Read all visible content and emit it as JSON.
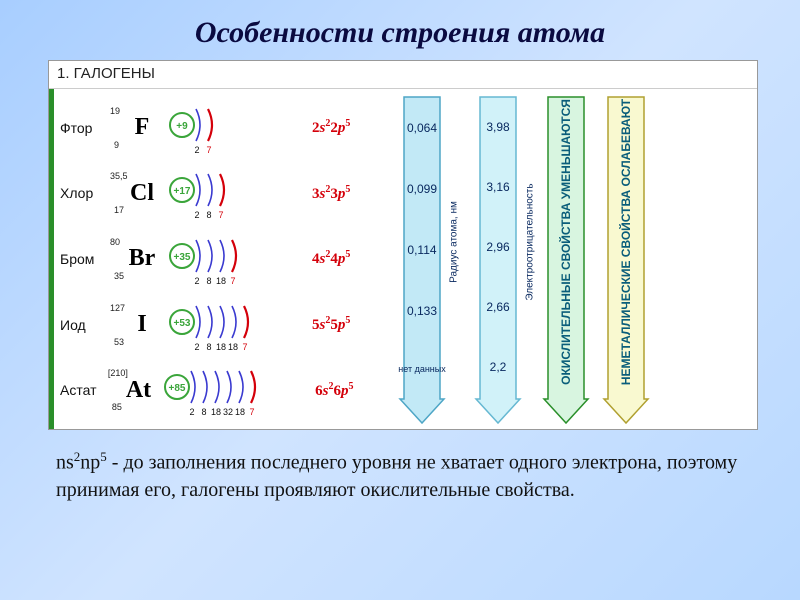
{
  "title": "Особенности строения атома",
  "section_header": "1. ГАЛОГЕНЫ",
  "colors": {
    "circle": "#3aa53a",
    "arc_outer": "#3a3ad0",
    "arc_last": "#d4000a",
    "symbol": "#111111",
    "shell_num": "#111111",
    "shell_num_last": "#d4000a",
    "config": "#d4000a",
    "green_bar": "#2a8f2a",
    "arrow1_fill": "#c2e9f6",
    "arrow1_stroke": "#4ea6c6",
    "arrow2_fill": "#d1f2f9",
    "arrow2_stroke": "#66b8d2",
    "arrow3_fill": "#d8f5e0",
    "arrow3_stroke": "#2a8f2a",
    "arrow4_fill": "#f9f9d0",
    "arrow4_stroke": "#b0a030"
  },
  "footnote_prefix": "ns",
  "footnote_mid": "np",
  "footnote_rest": "  - до заполнения последнего уровня не хватает одного электрона, поэтому принимая его, галогены проявляют окислительные свойства.",
  "elements": [
    {
      "name": "Фтор",
      "symbol": "F",
      "mass": "19",
      "z": "9",
      "charge": "+9",
      "shells": [
        2,
        7
      ],
      "config_n": "2"
    },
    {
      "name": "Хлор",
      "symbol": "Cl",
      "mass": "35,5",
      "z": "17",
      "charge": "+17",
      "shells": [
        2,
        8,
        7
      ],
      "config_n": "3"
    },
    {
      "name": "Бром",
      "symbol": "Br",
      "mass": "80",
      "z": "35",
      "charge": "+35",
      "shells": [
        2,
        8,
        18,
        7
      ],
      "config_n": "4"
    },
    {
      "name": "Иод",
      "symbol": "I",
      "mass": "127",
      "z": "53",
      "charge": "+53",
      "shells": [
        2,
        8,
        18,
        18,
        7
      ],
      "config_n": "5"
    },
    {
      "name": "Астат",
      "symbol": "At",
      "mass": "[210]",
      "z": "85",
      "charge": "+85",
      "shells": [
        2,
        8,
        18,
        32,
        18,
        7
      ],
      "config_n": "6"
    }
  ],
  "arrows": [
    {
      "label": "Радиус атома, нм",
      "label_cls": "sm",
      "values": [
        "0,064",
        "0,099",
        "0,114",
        "0,133",
        "нет данных"
      ]
    },
    {
      "label": "Электроотрицательность",
      "label_cls": "sm",
      "values": [
        "3,98",
        "3,16",
        "2,96",
        "2,66",
        "2,2"
      ]
    },
    {
      "label": "ОКИСЛИТЕЛЬНЫЕ СВОЙСТВА УМЕНЬШАЮТСЯ",
      "label_cls": "md",
      "values": []
    },
    {
      "label": "НЕМЕТАЛЛИЧЕСКИЕ СВОЙСТВА ОСЛАБЕВАЮТ",
      "label_cls": "md",
      "values": []
    }
  ]
}
